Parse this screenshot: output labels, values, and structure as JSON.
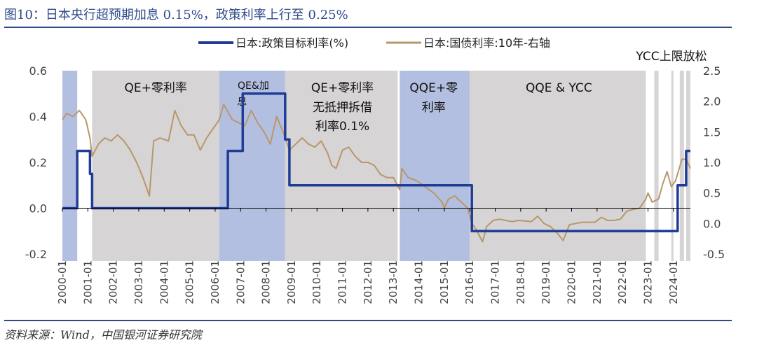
{
  "title": "图10：日本央行超预期加息 0.15%，政策利率上行至 0.25%",
  "source": "资料来源：Wind，中国银河证券研究院",
  "colors": {
    "policy_rate": "#1f3c96",
    "bond_yield": "#b9976a",
    "shade_blue": "#b3bfe0",
    "shade_gray": "#d6d4d4",
    "title": "#2d4a8a"
  },
  "chart_data": {
    "type": "line",
    "title": "",
    "xlabel": "",
    "ylabel_left": "",
    "ylabel_right": "",
    "ylim_left": [
      -0.2,
      0.6
    ],
    "ylim_right": [
      -0.5,
      2.5
    ],
    "xlim": [
      "2000-01",
      "2024-09"
    ],
    "left_ticks": [
      "0.6",
      "0.4",
      "0.2",
      "0.0",
      "-0.2"
    ],
    "left_tick_values": [
      0.6,
      0.4,
      0.2,
      0.0,
      -0.2
    ],
    "right_ticks": [
      "2.5",
      "2.0",
      "1.5",
      "1.0",
      "0.5",
      "0.0",
      "-0.5"
    ],
    "right_tick_values": [
      2.5,
      2.0,
      1.5,
      1.0,
      0.5,
      0.0,
      -0.5
    ],
    "x_ticks": [
      "2000-01",
      "2001-01",
      "2002-01",
      "2003-01",
      "2004-01",
      "2005-01",
      "2006-01",
      "2007-01",
      "2008-01",
      "2009-01",
      "2010-01",
      "2011-01",
      "2012-01",
      "2013-01",
      "2014-01",
      "2015-01",
      "2016-01",
      "2017-01",
      "2018-01",
      "2019-01",
      "2020-01",
      "2021-01",
      "2022-01",
      "2023-01",
      "2024-01"
    ],
    "legend_position": "top",
    "grid": false,
    "series": [
      {
        "name": "日本:政策目标利率(%)",
        "axis": "left",
        "step": true,
        "points": [
          [
            "2000-01",
            0.0
          ],
          [
            "2000-08",
            0.25
          ],
          [
            "2001-02",
            0.15
          ],
          [
            "2001-03",
            0.0
          ],
          [
            "2006-07",
            0.25
          ],
          [
            "2007-02",
            0.5
          ],
          [
            "2008-10",
            0.3
          ],
          [
            "2008-12",
            0.1
          ],
          [
            "2016-02",
            -0.1
          ],
          [
            "2024-03",
            0.1
          ],
          [
            "2024-07",
            0.25
          ],
          [
            "2024-09",
            0.25
          ]
        ]
      },
      {
        "name": "日本:国债利率:10年-右轴",
        "axis": "right",
        "points": [
          [
            "2000-01",
            1.7
          ],
          [
            "2000-03",
            1.8
          ],
          [
            "2000-06",
            1.75
          ],
          [
            "2000-09",
            1.85
          ],
          [
            "2000-12",
            1.7
          ],
          [
            "2001-02",
            1.4
          ],
          [
            "2001-03",
            1.1
          ],
          [
            "2001-06",
            1.3
          ],
          [
            "2001-09",
            1.4
          ],
          [
            "2001-12",
            1.35
          ],
          [
            "2002-03",
            1.45
          ],
          [
            "2002-06",
            1.35
          ],
          [
            "2002-09",
            1.2
          ],
          [
            "2002-12",
            1.0
          ],
          [
            "2003-03",
            0.75
          ],
          [
            "2003-06",
            0.45
          ],
          [
            "2003-08",
            1.35
          ],
          [
            "2003-11",
            1.4
          ],
          [
            "2004-03",
            1.35
          ],
          [
            "2004-06",
            1.85
          ],
          [
            "2004-09",
            1.6
          ],
          [
            "2004-12",
            1.45
          ],
          [
            "2005-03",
            1.45
          ],
          [
            "2005-06",
            1.2
          ],
          [
            "2005-09",
            1.4
          ],
          [
            "2005-12",
            1.55
          ],
          [
            "2006-03",
            1.7
          ],
          [
            "2006-05",
            1.95
          ],
          [
            "2006-09",
            1.7
          ],
          [
            "2006-12",
            1.65
          ],
          [
            "2007-03",
            1.6
          ],
          [
            "2007-06",
            1.85
          ],
          [
            "2007-09",
            1.65
          ],
          [
            "2007-12",
            1.5
          ],
          [
            "2008-03",
            1.3
          ],
          [
            "2008-06",
            1.75
          ],
          [
            "2008-09",
            1.5
          ],
          [
            "2008-12",
            1.2
          ],
          [
            "2009-03",
            1.3
          ],
          [
            "2009-06",
            1.4
          ],
          [
            "2009-09",
            1.3
          ],
          [
            "2009-12",
            1.25
          ],
          [
            "2010-03",
            1.35
          ],
          [
            "2010-06",
            1.15
          ],
          [
            "2010-08",
            0.95
          ],
          [
            "2010-10",
            0.9
          ],
          [
            "2011-01",
            1.2
          ],
          [
            "2011-04",
            1.25
          ],
          [
            "2011-07",
            1.1
          ],
          [
            "2011-10",
            1.0
          ],
          [
            "2012-01",
            1.0
          ],
          [
            "2012-04",
            0.95
          ],
          [
            "2012-07",
            0.8
          ],
          [
            "2012-10",
            0.75
          ],
          [
            "2013-01",
            0.75
          ],
          [
            "2013-04",
            0.55
          ],
          [
            "2013-05",
            0.9
          ],
          [
            "2013-08",
            0.75
          ],
          [
            "2013-12",
            0.7
          ],
          [
            "2014-04",
            0.6
          ],
          [
            "2014-08",
            0.5
          ],
          [
            "2014-12",
            0.35
          ],
          [
            "2015-01",
            0.25
          ],
          [
            "2015-03",
            0.4
          ],
          [
            "2015-06",
            0.45
          ],
          [
            "2015-09",
            0.35
          ],
          [
            "2015-12",
            0.25
          ],
          [
            "2016-02",
            0.0
          ],
          [
            "2016-04",
            -0.1
          ],
          [
            "2016-07",
            -0.3
          ],
          [
            "2016-09",
            -0.05
          ],
          [
            "2016-12",
            0.05
          ],
          [
            "2017-03",
            0.07
          ],
          [
            "2017-06",
            0.05
          ],
          [
            "2017-09",
            0.03
          ],
          [
            "2017-12",
            0.05
          ],
          [
            "2018-03",
            0.04
          ],
          [
            "2018-06",
            0.03
          ],
          [
            "2018-09",
            0.12
          ],
          [
            "2018-12",
            0.0
          ],
          [
            "2019-03",
            -0.05
          ],
          [
            "2019-06",
            -0.15
          ],
          [
            "2019-09",
            -0.28
          ],
          [
            "2019-12",
            -0.02
          ],
          [
            "2020-03",
            0.0
          ],
          [
            "2020-06",
            0.02
          ],
          [
            "2020-09",
            0.02
          ],
          [
            "2020-12",
            0.02
          ],
          [
            "2021-03",
            0.1
          ],
          [
            "2021-06",
            0.05
          ],
          [
            "2021-09",
            0.05
          ],
          [
            "2021-12",
            0.07
          ],
          [
            "2022-03",
            0.2
          ],
          [
            "2022-06",
            0.23
          ],
          [
            "2022-09",
            0.25
          ],
          [
            "2022-12",
            0.4
          ],
          [
            "2023-01",
            0.5
          ],
          [
            "2023-03",
            0.35
          ],
          [
            "2023-06",
            0.4
          ],
          [
            "2023-08",
            0.65
          ],
          [
            "2023-10",
            0.85
          ],
          [
            "2023-12",
            0.6
          ],
          [
            "2024-02",
            0.7
          ],
          [
            "2024-05",
            1.05
          ],
          [
            "2024-07",
            1.05
          ],
          [
            "2024-09",
            0.9
          ]
        ]
      }
    ],
    "shaded_regions": [
      {
        "start": "2000-01",
        "end": "2000-08",
        "color": "blue",
        "label": ""
      },
      {
        "start": "2001-03",
        "end": "2006-03",
        "color": "gray",
        "label": "QE+零利率"
      },
      {
        "start": "2006-03",
        "end": "2008-10",
        "color": "blue",
        "label": "QE&加息"
      },
      {
        "start": "2008-10",
        "end": "2013-03",
        "color": "gray",
        "label": "QE+零利率无抵押拆借利率0.1%"
      },
      {
        "start": "2013-04",
        "end": "2016-01",
        "color": "blue",
        "label": "QQE+零利率"
      },
      {
        "start": "2016-01",
        "end": "2022-12",
        "color": "gray",
        "label": "QQE & YCC"
      },
      {
        "start": "2023-04",
        "end": "2023-06",
        "color": "gray",
        "label": ""
      },
      {
        "start": "2023-12",
        "end": "2024-01",
        "color": "gray",
        "label": ""
      },
      {
        "start": "2024-04",
        "end": "2024-06",
        "color": "gray",
        "label": ""
      },
      {
        "start": "2024-07",
        "end": "2024-09",
        "color": "gray",
        "label": ""
      }
    ],
    "annotations": [
      {
        "text": "YCC上限放松",
        "position": "top-right"
      }
    ]
  }
}
